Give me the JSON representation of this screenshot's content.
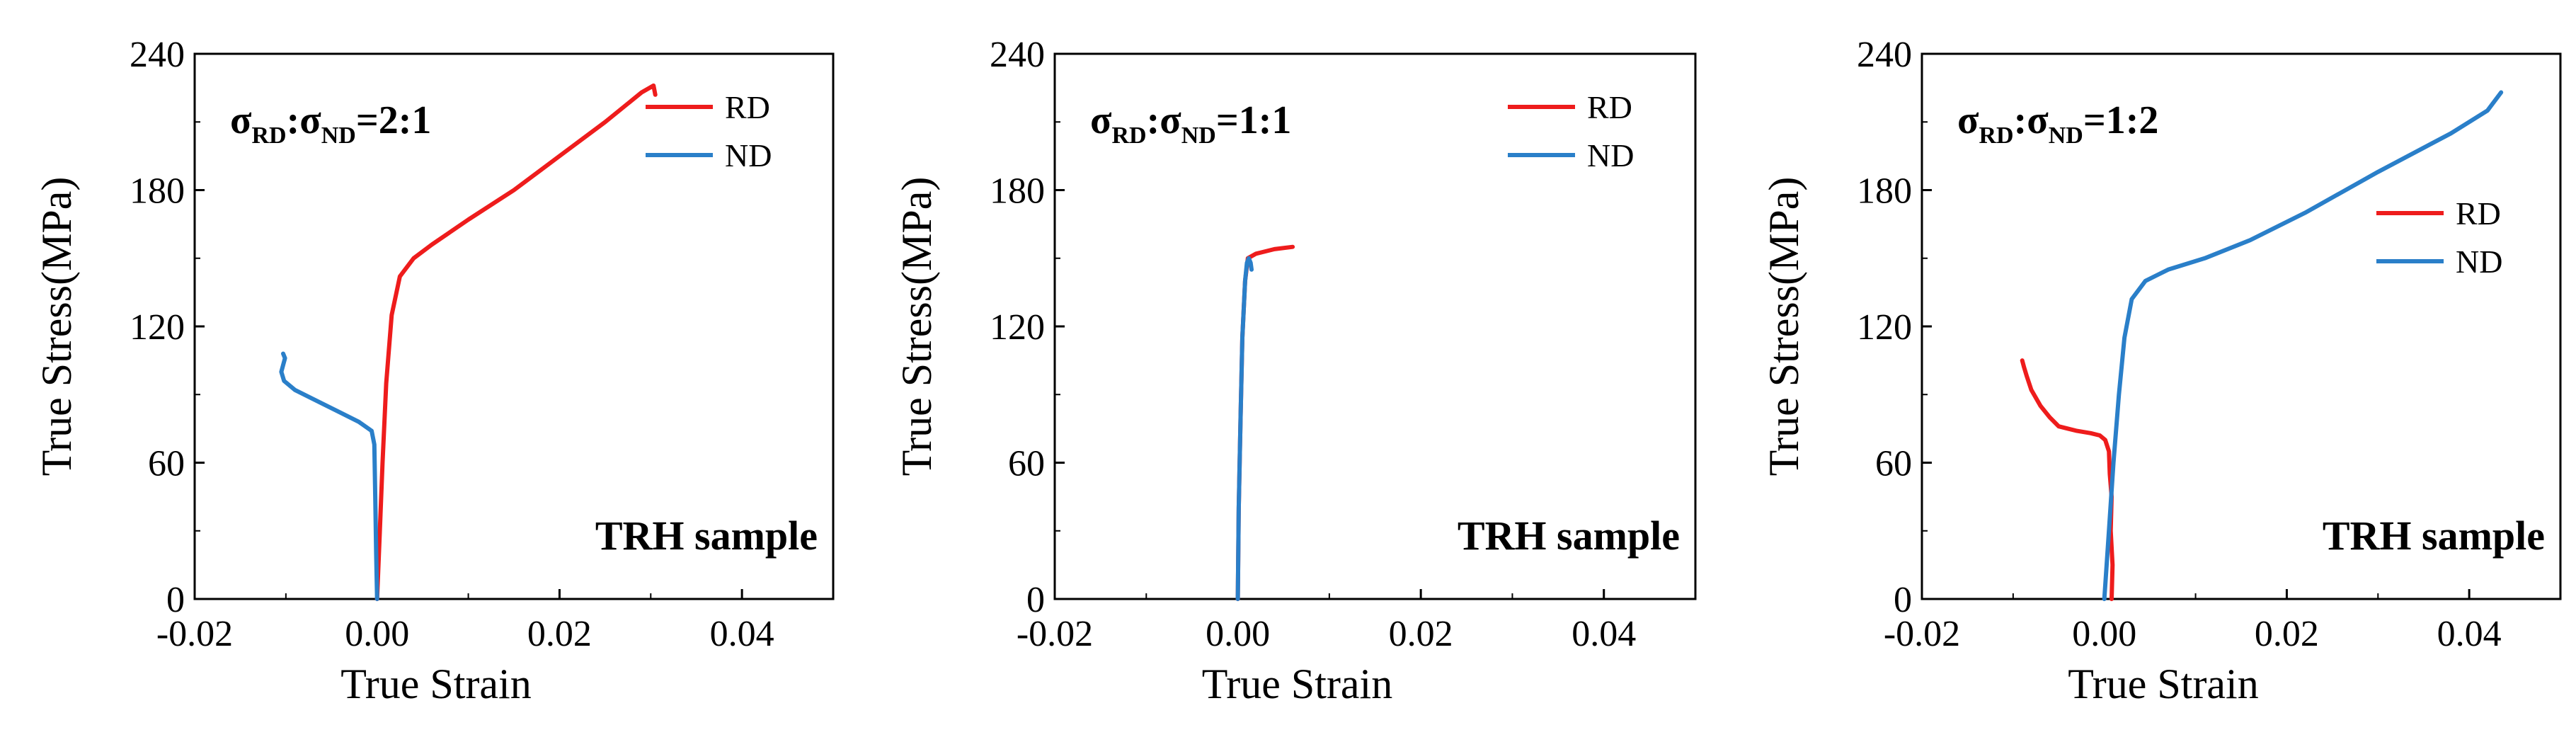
{
  "figure": {
    "background": "#ffffff"
  },
  "chart_data": [
    {
      "type": "line",
      "title": "",
      "annotation": {
        "sigma": "σ",
        "sub_a": "RD",
        "colon": ":",
        "sub_b": "ND",
        "ratio": "=2:1"
      },
      "sample_label": "TRH sample",
      "xlabel": "True Strain",
      "ylabel": "True Stress(MPa)",
      "xlim": [
        -0.02,
        0.05
      ],
      "ylim": [
        0,
        240
      ],
      "xticks": [
        -0.02,
        0.0,
        0.02,
        0.04
      ],
      "xtick_labels": [
        "-0.02",
        "0.00",
        "0.02",
        "0.04"
      ],
      "yticks": [
        0,
        60,
        120,
        180,
        240
      ],
      "ytick_labels": [
        "0",
        "60",
        "120",
        "180",
        "240"
      ],
      "legend_position": "top-right",
      "series": [
        {
          "name": "RD",
          "color": "#ee1c1c",
          "x": [
            0.0,
            0.0003,
            0.0006,
            0.001,
            0.0016,
            0.0025,
            0.004,
            0.006,
            0.01,
            0.015,
            0.02,
            0.025,
            0.029,
            0.0303,
            0.0305
          ],
          "y": [
            0,
            30,
            60,
            95,
            125,
            142,
            150,
            156,
            167,
            180,
            195,
            210,
            223,
            226,
            222
          ]
        },
        {
          "name": "ND",
          "color": "#2a7fc9",
          "x": [
            0.0,
            -0.0001,
            -0.0002,
            -0.0003,
            -0.0006,
            -0.002,
            -0.004,
            -0.007,
            -0.009,
            -0.0102,
            -0.0105,
            -0.0103,
            -0.0101,
            -0.0103
          ],
          "y": [
            0,
            20,
            45,
            68,
            74,
            78,
            82,
            88,
            92,
            96,
            100,
            103,
            106,
            108
          ]
        }
      ]
    },
    {
      "type": "line",
      "title": "",
      "annotation": {
        "sigma": "σ",
        "sub_a": "RD",
        "colon": ":",
        "sub_b": "ND",
        "ratio": "=1:1"
      },
      "sample_label": "TRH sample",
      "xlabel": "True Strain",
      "ylabel": "True Stress(MPa)",
      "xlim": [
        -0.02,
        0.05
      ],
      "ylim": [
        0,
        240
      ],
      "xticks": [
        -0.02,
        0.0,
        0.02,
        0.04
      ],
      "xtick_labels": [
        "-0.02",
        "0.00",
        "0.02",
        "0.04"
      ],
      "yticks": [
        0,
        60,
        120,
        180,
        240
      ],
      "ytick_labels": [
        "0",
        "60",
        "120",
        "180",
        "240"
      ],
      "legend_position": "top-right",
      "series": [
        {
          "name": "RD",
          "color": "#ee1c1c",
          "x": [
            0.0,
            0.0001,
            0.0003,
            0.0005,
            0.0008,
            0.0011,
            0.002,
            0.004,
            0.006
          ],
          "y": [
            0,
            40,
            80,
            115,
            140,
            150,
            152,
            154,
            155
          ]
        },
        {
          "name": "ND",
          "color": "#2a7fc9",
          "x": [
            0.0,
            0.0001,
            0.0003,
            0.0005,
            0.0008,
            0.001,
            0.0012,
            0.0014,
            0.0015
          ],
          "y": [
            0,
            40,
            80,
            115,
            140,
            148,
            150,
            148,
            145
          ]
        }
      ]
    },
    {
      "type": "line",
      "title": "",
      "annotation": {
        "sigma": "σ",
        "sub_a": "RD",
        "colon": ":",
        "sub_b": "ND",
        "ratio": "=1:2"
      },
      "sample_label": "TRH sample",
      "xlabel": "True Strain",
      "ylabel": "True Stress(MPa)",
      "xlim": [
        -0.02,
        0.05
      ],
      "ylim": [
        0,
        240
      ],
      "xticks": [
        -0.02,
        0.0,
        0.02,
        0.04
      ],
      "xtick_labels": [
        "-0.02",
        "0.00",
        "0.02",
        "0.04"
      ],
      "yticks": [
        0,
        60,
        120,
        180,
        240
      ],
      "ytick_labels": [
        "0",
        "60",
        "120",
        "180",
        "240"
      ],
      "legend_position": "upper-right",
      "series": [
        {
          "name": "RD",
          "color": "#ee1c1c",
          "x": [
            0.0008,
            0.0009,
            0.0007,
            0.0008,
            0.0006,
            0.0005,
            0.0001,
            -0.0005,
            -0.0015,
            -0.003,
            -0.005,
            -0.006,
            -0.007,
            -0.008,
            -0.0085,
            -0.0088,
            -0.009
          ],
          "y": [
            0,
            15,
            30,
            45,
            55,
            65,
            70,
            72,
            73,
            74,
            76,
            80,
            85,
            92,
            98,
            102,
            105
          ]
        },
        {
          "name": "ND",
          "color": "#2a7fc9",
          "x": [
            0.0,
            0.0005,
            0.001,
            0.0016,
            0.0022,
            0.003,
            0.0045,
            0.007,
            0.011,
            0.016,
            0.022,
            0.03,
            0.038,
            0.042,
            0.0435
          ],
          "y": [
            0,
            30,
            60,
            90,
            115,
            132,
            140,
            145,
            150,
            158,
            170,
            188,
            205,
            215,
            223
          ]
        }
      ]
    }
  ]
}
